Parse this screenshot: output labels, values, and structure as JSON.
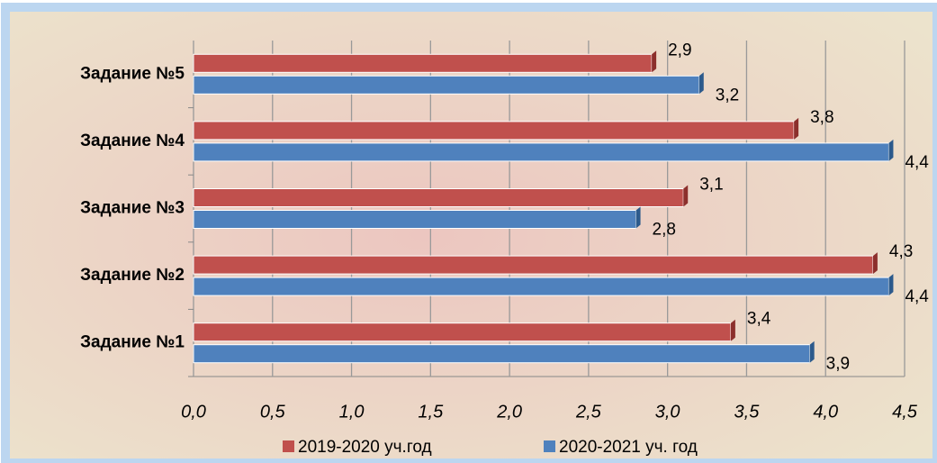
{
  "chart_data": {
    "type": "barh",
    "categories": [
      "Задание №1",
      "Задание №2",
      "Задание №3",
      "Задание №4",
      "Задание №5"
    ],
    "series": [
      {
        "name": "2019-2020 уч.год",
        "color": "#c0504d",
        "values": [
          3.4,
          4.3,
          3.1,
          3.8,
          2.9
        ],
        "value_labels": [
          "3,4",
          "4,3",
          "3,1",
          "3,8",
          "2,9"
        ]
      },
      {
        "name": "2020-2021 уч. год",
        "color": "#4f81bd",
        "values": [
          3.9,
          4.4,
          2.8,
          4.4,
          3.2
        ],
        "value_labels": [
          "3,9",
          "4,4",
          "2,8",
          "4,4",
          "3,2"
        ]
      }
    ],
    "xlim": [
      0,
      4.5
    ],
    "xticks": [
      {
        "value": 0,
        "label": "0,0"
      },
      {
        "value": 0.5,
        "label": "0,5"
      },
      {
        "value": 1,
        "label": "1,0"
      },
      {
        "value": 1.5,
        "label": "1,5"
      },
      {
        "value": 2,
        "label": "2,0"
      },
      {
        "value": 2.5,
        "label": "2,5"
      },
      {
        "value": 3,
        "label": "3,0"
      },
      {
        "value": 3.5,
        "label": "3,5"
      },
      {
        "value": 4,
        "label": "4,0"
      },
      {
        "value": 4.5,
        "label": "4,5"
      }
    ],
    "grid": true,
    "legend": "bottom"
  }
}
